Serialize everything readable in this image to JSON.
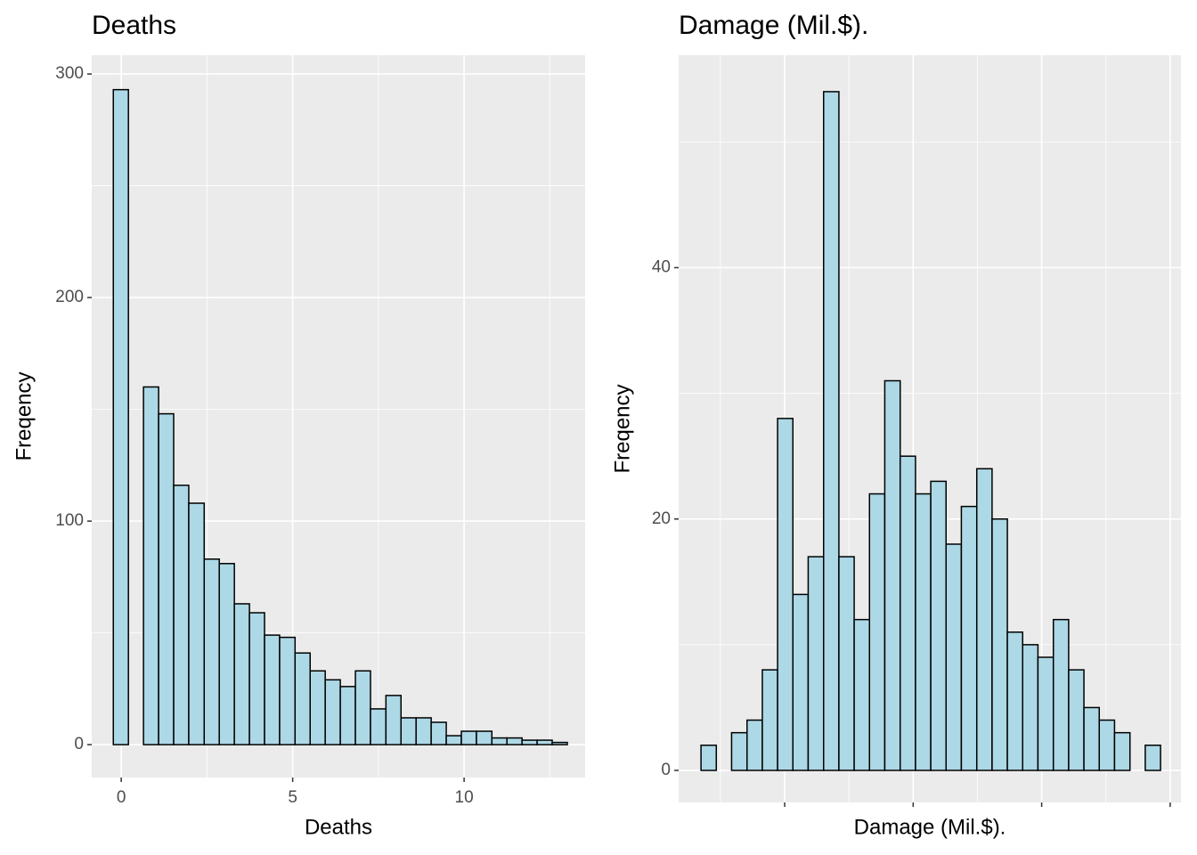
{
  "chart_data": [
    {
      "type": "histogram",
      "title": "Deaths",
      "x_label": "Deaths",
      "y_label": "Freqency",
      "bins": [
        -0.23,
        0.21,
        0.65,
        1.09,
        1.53,
        1.97,
        2.42,
        2.86,
        3.3,
        3.74,
        4.18,
        4.62,
        5.07,
        5.51,
        5.95,
        6.39,
        6.83,
        7.27,
        7.72,
        8.16,
        8.6,
        9.04,
        9.48,
        9.92,
        10.36,
        10.81,
        11.25,
        11.69,
        12.13,
        12.57,
        13.01
      ],
      "values": [
        293,
        0,
        160,
        148,
        116,
        108,
        83,
        81,
        63,
        59,
        49,
        48,
        41,
        33,
        29,
        26,
        33,
        16,
        22,
        12,
        12,
        10,
        4,
        6,
        6,
        3,
        3,
        2,
        2,
        1
      ],
      "color": "#add8e6",
      "edgecolor": "#000000",
      "xlim": [
        -0.86,
        13.53
      ],
      "ylim": [
        -14.7,
        308.4
      ],
      "xticks": [
        0,
        5,
        10
      ],
      "yticks": [
        0,
        100,
        200,
        300
      ],
      "minor_xticks": [
        2.5,
        7.5,
        12.5
      ],
      "minor_yticks": [
        50,
        150,
        250
      ],
      "xtick_labels": true,
      "grid": true
    },
    {
      "type": "histogram",
      "title": "Damage (Mil.$).",
      "x_label": "Damage (Mil.$).",
      "y_label": "Freqency",
      "bins": [
        0.349,
        0.468,
        0.587,
        0.707,
        0.826,
        0.945,
        1.064,
        1.183,
        1.303,
        1.422,
        1.541,
        1.66,
        1.779,
        1.899,
        2.018,
        2.137,
        2.256,
        2.375,
        2.495,
        2.614,
        2.733,
        2.852,
        2.971,
        3.091,
        3.21,
        3.329,
        3.448,
        3.567,
        3.687,
        3.806,
        3.925
      ],
      "values": [
        2,
        0,
        3,
        4,
        8,
        28,
        14,
        17,
        54,
        17,
        12,
        22,
        31,
        25,
        22,
        23,
        18,
        21,
        24,
        20,
        11,
        10,
        9,
        12,
        8,
        5,
        4,
        3,
        0,
        2
      ],
      "color": "#add8e6",
      "edgecolor": "#000000",
      "xlim": [
        0.175,
        4.084
      ],
      "ylim": [
        -2.55,
        56.9
      ],
      "xticks": [
        1,
        2,
        3,
        4
      ],
      "yticks": [
        0,
        20,
        40
      ],
      "minor_xticks": [
        0.5,
        1.5,
        2.5,
        3.5
      ],
      "minor_yticks": [
        10,
        30,
        50
      ],
      "xtick_labels": false,
      "grid": true
    }
  ]
}
